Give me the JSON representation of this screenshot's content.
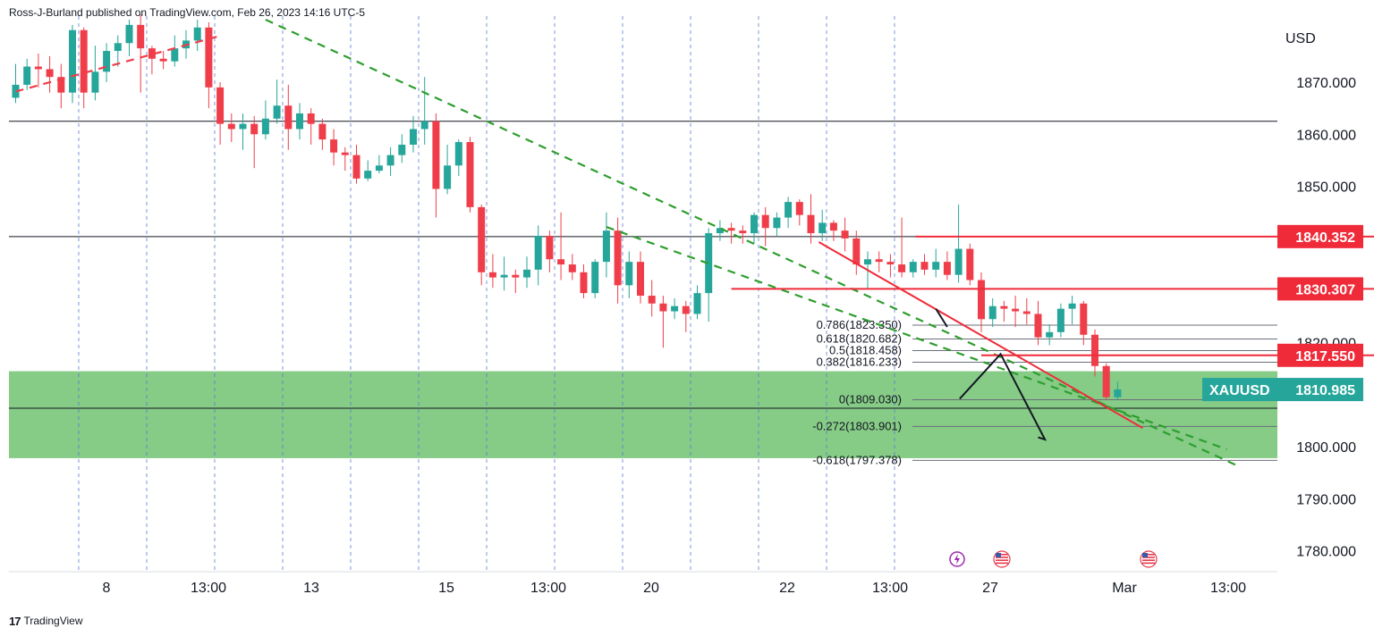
{
  "header": {
    "publisher_line": "Ross-J-Burland published on TradingView.com, Feb 26, 2023 14:16 UTC-5"
  },
  "footer": {
    "brand": "TradingView",
    "logo_glyph": "17"
  },
  "colors": {
    "up": "#26a69a",
    "down": "#ef3e4a",
    "trend_dashed": "#2e9e2e",
    "resistance": "#ef2b3a",
    "zone_fill": "#7fc87f",
    "grid": "#5b7bd0",
    "symbol_tag": "#26a69a",
    "level_tag": "#ef2b3a"
  },
  "chart_data": {
    "type": "candlestick",
    "symbol": "XAUUSD",
    "currency": "USD",
    "last_price": "1810.985",
    "y_ticks": [
      "1870.000",
      "1860.000",
      "1850.000",
      "1820.000",
      "1800.000",
      "1790.000",
      "1780.000"
    ],
    "y_tick_values": [
      1870,
      1860,
      1850,
      1820,
      1800,
      1790,
      1780
    ],
    "x_ticks": [
      "8",
      "13:00",
      "13",
      "15",
      "13:00",
      "20",
      "22",
      "13:00",
      "27",
      "Mar",
      "13:00"
    ],
    "price_tags": [
      {
        "label": "1840.352",
        "value": 1840.352
      },
      {
        "label": "1830.307",
        "value": 1830.307
      },
      {
        "label": "1817.550",
        "value": 1817.55
      }
    ],
    "horizontal_lines": [
      1862.5,
      1840.352,
      1807.4
    ],
    "support_zone": [
      1797.8,
      1814.5
    ],
    "fib_levels": [
      {
        "label": "0.786(1823.350)",
        "value": 1823.35
      },
      {
        "label": "0.618(1820.682)",
        "value": 1820.682
      },
      {
        "label": "0.5(1818.458)",
        "value": 1818.458
      },
      {
        "label": "0.382(1816.233)",
        "value": 1816.233
      },
      {
        "label": "0(1809.030)",
        "value": 1809.03
      },
      {
        "label": "-0.272(1803.901)",
        "value": 1803.901
      },
      {
        "label": "-0.618(1797.378)",
        "value": 1797.378
      }
    ],
    "event_markers": [
      "lightning",
      "us-flag",
      "us-flag"
    ],
    "candles": [
      [
        1867.0,
        1869.5,
        1866.0,
        1873.5
      ],
      [
        1869.5,
        1873.0,
        1868.5,
        1874.5
      ],
      [
        1873.0,
        1872.5,
        1869.0,
        1875.5
      ],
      [
        1872.5,
        1871.0,
        1868.0,
        1875.0
      ],
      [
        1871.0,
        1868.0,
        1865.0,
        1873.5
      ],
      [
        1868.0,
        1880.0,
        1866.0,
        1881.0
      ],
      [
        1880.0,
        1868.0,
        1865.0,
        1880.5
      ],
      [
        1868.0,
        1872.0,
        1866.5,
        1877.0
      ],
      [
        1872.0,
        1876.0,
        1870.0,
        1877.5
      ],
      [
        1876.0,
        1877.5,
        1873.0,
        1879.0
      ],
      [
        1877.5,
        1881.0,
        1875.0,
        1882.0
      ],
      [
        1881.0,
        1876.5,
        1868.0,
        1883.0
      ],
      [
        1876.5,
        1874.5,
        1871.5,
        1877.0
      ],
      [
        1874.5,
        1874.0,
        1872.5,
        1876.0
      ],
      [
        1874.0,
        1876.5,
        1873.0,
        1879.0
      ],
      [
        1876.5,
        1878.0,
        1874.5,
        1880.0
      ],
      [
        1878.0,
        1880.5,
        1876.0,
        1882.0
      ],
      [
        1880.5,
        1869.0,
        1865.0,
        1881.5
      ],
      [
        1869.0,
        1862.0,
        1858.0,
        1870.0
      ],
      [
        1862.0,
        1861.0,
        1858.5,
        1864.0
      ],
      [
        1861.0,
        1862.0,
        1857.0,
        1864.0
      ],
      [
        1862.0,
        1860.0,
        1853.5,
        1863.5
      ],
      [
        1860.0,
        1863.0,
        1859.0,
        1866.5
      ],
      [
        1863.0,
        1865.5,
        1862.0,
        1870.5
      ],
      [
        1865.5,
        1861.0,
        1857.0,
        1869.5
      ],
      [
        1861.0,
        1864.0,
        1859.0,
        1866.0
      ],
      [
        1864.0,
        1862.0,
        1858.0,
        1865.0
      ],
      [
        1862.0,
        1859.0,
        1857.0,
        1863.0
      ],
      [
        1859.0,
        1856.5,
        1854.0,
        1861.0
      ],
      [
        1856.5,
        1856.0,
        1853.0,
        1857.5
      ],
      [
        1856.0,
        1851.5,
        1850.5,
        1858.0
      ],
      [
        1851.5,
        1853.0,
        1851.0,
        1855.0
      ],
      [
        1853.0,
        1854.0,
        1852.5,
        1856.0
      ],
      [
        1854.0,
        1856.0,
        1852.0,
        1857.5
      ],
      [
        1856.0,
        1858.0,
        1854.5,
        1860.0
      ],
      [
        1858.0,
        1861.0,
        1856.5,
        1863.5
      ],
      [
        1861.0,
        1862.5,
        1858.0,
        1871.0
      ],
      [
        1862.5,
        1849.5,
        1844.0,
        1864.0
      ],
      [
        1849.5,
        1854.0,
        1848.5,
        1858.0
      ],
      [
        1854.0,
        1858.5,
        1852.0,
        1859.0
      ],
      [
        1858.5,
        1846.0,
        1845.0,
        1859.5
      ],
      [
        1846.0,
        1833.5,
        1831.0,
        1846.5
      ],
      [
        1833.5,
        1832.5,
        1830.5,
        1837.0
      ],
      [
        1832.5,
        1833.0,
        1830.0,
        1836.5
      ],
      [
        1833.0,
        1832.5,
        1829.5,
        1834.0
      ],
      [
        1832.5,
        1834.0,
        1830.5,
        1836.5
      ],
      [
        1834.0,
        1840.5,
        1831.0,
        1842.5
      ],
      [
        1840.5,
        1836.0,
        1833.5,
        1841.5
      ],
      [
        1836.0,
        1835.0,
        1832.0,
        1845.0
      ],
      [
        1835.0,
        1833.5,
        1832.0,
        1837.0
      ],
      [
        1833.5,
        1829.5,
        1828.5,
        1835.0
      ],
      [
        1829.5,
        1835.5,
        1828.5,
        1836.0
      ],
      [
        1835.5,
        1841.5,
        1832.5,
        1845.0
      ],
      [
        1841.5,
        1831.0,
        1827.5,
        1844.0
      ],
      [
        1831.0,
        1835.5,
        1828.5,
        1837.5
      ],
      [
        1835.5,
        1829.0,
        1827.5,
        1837.5
      ],
      [
        1829.0,
        1827.5,
        1825.0,
        1832.0
      ],
      [
        1827.5,
        1826.0,
        1819.0,
        1829.0
      ],
      [
        1826.0,
        1827.0,
        1824.5,
        1828.5
      ],
      [
        1827.0,
        1825.5,
        1822.0,
        1828.0
      ],
      [
        1825.5,
        1829.5,
        1824.5,
        1831.0
      ],
      [
        1829.5,
        1841.0,
        1824.0,
        1842.0
      ],
      [
        1841.0,
        1842.0,
        1839.5,
        1843.5
      ],
      [
        1842.0,
        1841.5,
        1839.0,
        1843.0
      ],
      [
        1841.5,
        1841.0,
        1839.0,
        1842.5
      ],
      [
        1841.0,
        1844.5,
        1839.0,
        1845.0
      ],
      [
        1844.5,
        1842.0,
        1838.5,
        1846.0
      ],
      [
        1842.0,
        1844.0,
        1840.5,
        1845.0
      ],
      [
        1844.0,
        1847.0,
        1842.0,
        1848.0
      ],
      [
        1847.0,
        1844.5,
        1842.5,
        1847.5
      ],
      [
        1844.5,
        1841.0,
        1839.0,
        1848.5
      ],
      [
        1841.0,
        1843.0,
        1839.5,
        1845.5
      ],
      [
        1843.0,
        1841.5,
        1839.5,
        1843.5
      ],
      [
        1841.5,
        1840.0,
        1837.5,
        1844.0
      ],
      [
        1840.0,
        1835.0,
        1833.0,
        1841.5
      ],
      [
        1835.0,
        1836.0,
        1830.5,
        1837.5
      ],
      [
        1836.0,
        1835.5,
        1833.5,
        1837.5
      ],
      [
        1835.5,
        1835.0,
        1832.5,
        1837.0
      ],
      [
        1835.0,
        1833.5,
        1832.5,
        1844.0
      ],
      [
        1833.5,
        1835.5,
        1832.5,
        1836.0
      ],
      [
        1835.5,
        1834.0,
        1833.0,
        1837.0
      ],
      [
        1834.0,
        1835.5,
        1832.5,
        1838.0
      ],
      [
        1835.5,
        1833.0,
        1832.0,
        1837.5
      ],
      [
        1833.0,
        1838.0,
        1831.5,
        1846.5
      ],
      [
        1838.0,
        1832.0,
        1831.0,
        1839.0
      ],
      [
        1832.0,
        1824.5,
        1822.0,
        1833.5
      ],
      [
        1824.5,
        1827.0,
        1823.0,
        1828.5
      ],
      [
        1827.0,
        1826.5,
        1824.0,
        1828.0
      ],
      [
        1826.5,
        1826.0,
        1823.0,
        1829.0
      ],
      [
        1826.0,
        1825.5,
        1823.5,
        1828.5
      ],
      [
        1825.5,
        1821.0,
        1819.5,
        1828.0
      ],
      [
        1821.0,
        1822.0,
        1819.5,
        1823.5
      ],
      [
        1822.0,
        1826.5,
        1821.0,
        1827.5
      ],
      [
        1826.5,
        1827.5,
        1823.5,
        1829.0
      ],
      [
        1827.5,
        1821.5,
        1819.5,
        1828.0
      ],
      [
        1821.5,
        1815.5,
        1813.5,
        1822.5
      ],
      [
        1815.5,
        1809.5,
        1809.0,
        1816.0
      ],
      [
        1809.5,
        1811.0,
        1809.0,
        1812.5
      ]
    ]
  },
  "annotations": {
    "trend_dashed": [
      {
        "from": {
          "index": 0,
          "price": 1868.2
        },
        "to": {
          "index": 18,
          "price": 1878.9
        }
      },
      {
        "from": {
          "index": 22,
          "price": 1882.0
        },
        "to": {
          "index": 107.4,
          "price": 1796.5
        }
      },
      {
        "from": {
          "index": 52,
          "price": 1842.2
        },
        "to": {
          "index": 106.6,
          "price": 1799.5
        }
      }
    ],
    "red_lines": [
      {
        "from": {
          "index": 79.2,
          "price": 1840.352
        },
        "to": {
          "index": 120.0,
          "price": 1840.352
        }
      },
      {
        "from": {
          "index": 63.0,
          "price": 1830.307
        },
        "to": {
          "index": 120.0,
          "price": 1830.307
        }
      },
      {
        "from": {
          "index": 85.0,
          "price": 1817.55
        },
        "to": {
          "index": 120.0,
          "price": 1817.55
        }
      },
      {
        "from": {
          "index": 70.7,
          "price": 1839.3
        },
        "to": {
          "index": 99.2,
          "price": 1803.6
        }
      }
    ],
    "projection_path": [
      {
        "index": 83.1,
        "price": 1809.2
      },
      {
        "index": 86.7,
        "price": 1817.8
      },
      {
        "index": 90.6,
        "price": 1801.4
      },
      {
        "index": 90.0,
        "price": 1801.8
      }
    ]
  }
}
